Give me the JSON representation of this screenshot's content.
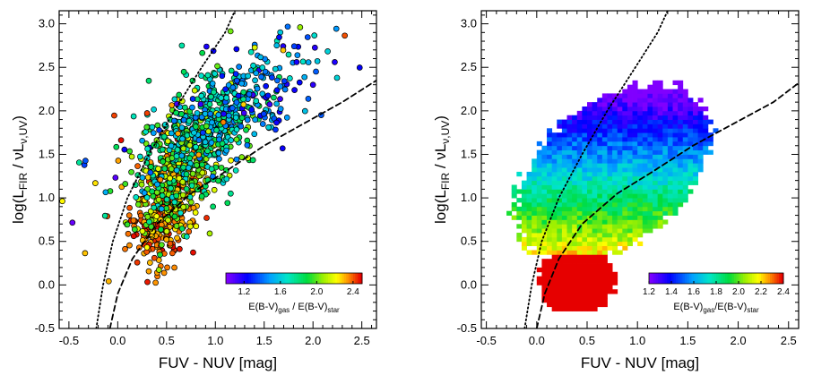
{
  "chart_data": [
    {
      "type": "scatter",
      "panel": "left",
      "xlabel": "FUV - NUV  [mag]",
      "ylabel_parts": [
        "log(L",
        "FIR",
        " / νL",
        "ν,UV",
        ")"
      ],
      "xlim": [
        -0.6,
        2.65
      ],
      "ylim": [
        -0.5,
        3.15
      ],
      "xticks": [
        -0.5,
        0.0,
        0.5,
        1.0,
        1.5,
        2.0,
        2.5
      ],
      "xtick_labels": [
        "-0.5",
        "0.0",
        "0.5",
        "1.0",
        "1.5",
        "2.0",
        "2.5"
      ],
      "yticks": [
        -0.5,
        0.0,
        0.5,
        1.0,
        1.5,
        2.0,
        2.5,
        3.0
      ],
      "ytick_labels": [
        "-0.5",
        "0.0",
        "0.5",
        "1.0",
        "1.5",
        "2.0",
        "2.5",
        "3.0"
      ],
      "colorbar": {
        "range": [
          1.0,
          2.5
        ],
        "ticks": [
          1.2,
          1.6,
          2.0,
          2.4
        ],
        "tick_labels": [
          "1.2",
          "1.6",
          "2.0",
          "2.4"
        ],
        "label_parts": [
          "E(B-V)",
          "gas",
          " / E(B-V)",
          "star"
        ]
      },
      "curves": [
        {
          "name": "dotted",
          "style": "dotted",
          "points": [
            [
              -0.22,
              -0.5
            ],
            [
              -0.15,
              0.0
            ],
            [
              -0.05,
              0.5
            ],
            [
              0.1,
              1.0
            ],
            [
              0.32,
              1.5
            ],
            [
              0.58,
              2.0
            ],
            [
              0.86,
              2.5
            ],
            [
              1.1,
              2.9
            ],
            [
              1.2,
              3.15
            ]
          ]
        },
        {
          "name": "dashed",
          "style": "dashed",
          "points": [
            [
              -0.08,
              -0.5
            ],
            [
              0.0,
              -0.1
            ],
            [
              0.15,
              0.3
            ],
            [
              0.4,
              0.7
            ],
            [
              0.75,
              1.05
            ],
            [
              1.1,
              1.3
            ],
            [
              1.5,
              1.6
            ],
            [
              1.9,
              1.85
            ],
            [
              2.3,
              2.1
            ],
            [
              2.65,
              2.35
            ]
          ]
        }
      ],
      "clusters": [
        {
          "center": [
            0.45,
            0.8
          ],
          "spread": [
            0.16,
            0.28
          ],
          "count": 280,
          "ratio": [
            2.3,
            2.5
          ]
        },
        {
          "center": [
            0.55,
            1.15
          ],
          "spread": [
            0.22,
            0.3
          ],
          "count": 260,
          "ratio": [
            1.9,
            2.4
          ]
        },
        {
          "center": [
            0.75,
            1.55
          ],
          "spread": [
            0.28,
            0.3
          ],
          "count": 320,
          "ratio": [
            1.6,
            2.2
          ]
        },
        {
          "center": [
            1.05,
            1.95
          ],
          "spread": [
            0.32,
            0.3
          ],
          "count": 260,
          "ratio": [
            1.4,
            1.9
          ]
        },
        {
          "center": [
            1.5,
            2.2
          ],
          "spread": [
            0.35,
            0.28
          ],
          "count": 110,
          "ratio": [
            1.1,
            1.7
          ]
        },
        {
          "center": [
            0.6,
            1.8
          ],
          "spread": [
            0.55,
            0.45
          ],
          "count": 60,
          "ratio": [
            1.0,
            2.5
          ]
        }
      ]
    },
    {
      "type": "heatmap",
      "panel": "right",
      "xlabel": "FUV - NUV  [mag]",
      "ylabel_parts": [
        "log(L",
        "FIR",
        " / νL",
        "ν,UV",
        ")"
      ],
      "xlim": [
        -0.55,
        2.6
      ],
      "ylim": [
        -0.5,
        3.15
      ],
      "xticks": [
        -0.5,
        0.0,
        0.5,
        1.0,
        1.5,
        2.0,
        2.5
      ],
      "xtick_labels": [
        "-0.5",
        "0.0",
        "0.5",
        "1.0",
        "1.5",
        "2.0",
        "2.5"
      ],
      "yticks": [
        -0.5,
        0.0,
        0.5,
        1.0,
        1.5,
        2.0,
        2.5,
        3.0
      ],
      "ytick_labels": [
        "-0.5",
        "0.0",
        "0.5",
        "1.0",
        "1.5",
        "2.0",
        "2.5",
        "3.0"
      ],
      "bin_x": 0.05,
      "bin_y": 0.05,
      "colorbar": {
        "range": [
          1.2,
          2.4
        ],
        "ticks": [
          1.2,
          1.4,
          1.6,
          1.8,
          2.0,
          2.2,
          2.4
        ],
        "tick_labels": [
          "1.2",
          "1.4",
          "1.6",
          "1.8",
          "2.0",
          "2.2",
          "2.4"
        ],
        "label_parts": [
          "E(B-V)",
          "gas",
          "/E(B-V)",
          "star"
        ]
      },
      "curves": [
        {
          "name": "dotted",
          "style": "dotted",
          "points": [
            [
              -0.12,
              -0.5
            ],
            [
              -0.05,
              0.0
            ],
            [
              0.05,
              0.5
            ],
            [
              0.22,
              1.0
            ],
            [
              0.45,
              1.5
            ],
            [
              0.7,
              2.0
            ],
            [
              0.98,
              2.5
            ],
            [
              1.2,
              2.9
            ],
            [
              1.3,
              3.15
            ]
          ]
        },
        {
          "name": "dashed",
          "style": "dashed",
          "points": [
            [
              0.0,
              -0.5
            ],
            [
              0.08,
              -0.1
            ],
            [
              0.22,
              0.3
            ],
            [
              0.45,
              0.7
            ],
            [
              0.8,
              1.05
            ],
            [
              1.15,
              1.3
            ],
            [
              1.55,
              1.6
            ],
            [
              1.95,
              1.85
            ],
            [
              2.35,
              2.1
            ],
            [
              2.6,
              2.32
            ]
          ]
        }
      ]
    }
  ]
}
